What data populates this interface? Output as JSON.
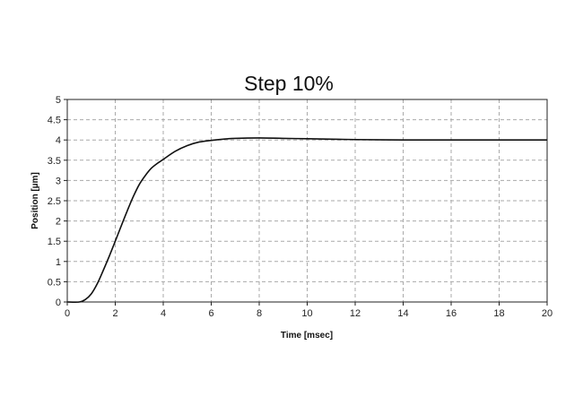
{
  "chart_data": {
    "type": "line",
    "title": "Step 10%",
    "xlabel": "Time [msec]",
    "ylabel": "Position [µm]",
    "xlim": [
      0,
      20
    ],
    "ylim": [
      0,
      5
    ],
    "xticks": [
      0,
      2,
      4,
      6,
      8,
      10,
      12,
      14,
      16,
      18,
      20
    ],
    "yticks": [
      0,
      0.5,
      1,
      1.5,
      2,
      2.5,
      3,
      3.5,
      4,
      4.5,
      5
    ],
    "grid": true,
    "line_color": "#111111",
    "series": [
      {
        "x": [
          0,
          0.5,
          0.75,
          1,
          1.25,
          1.5,
          1.75,
          2,
          2.25,
          2.5,
          2.75,
          3,
          3.25,
          3.5,
          3.75,
          4,
          4.5,
          5,
          5.5,
          6,
          6.5,
          7,
          8,
          9,
          10,
          11,
          12,
          14,
          16,
          18,
          20
        ],
        "y": [
          0,
          0,
          0.06,
          0.2,
          0.45,
          0.78,
          1.13,
          1.5,
          1.88,
          2.25,
          2.6,
          2.9,
          3.12,
          3.3,
          3.42,
          3.52,
          3.72,
          3.86,
          3.95,
          3.99,
          4.02,
          4.04,
          4.05,
          4.04,
          4.03,
          4.02,
          4.01,
          4.0,
          4.0,
          4.0,
          4.0
        ]
      }
    ]
  }
}
